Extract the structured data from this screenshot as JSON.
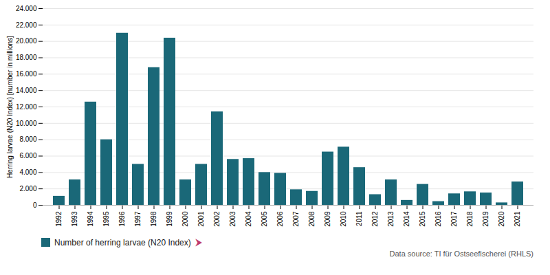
{
  "chart_data": {
    "type": "bar",
    "categories": [
      "1992",
      "1993",
      "1994",
      "1995",
      "1996",
      "1997",
      "1998",
      "1999",
      "2000",
      "2001",
      "2002",
      "2003",
      "2004",
      "2005",
      "2006",
      "2007",
      "2008",
      "2009",
      "2010",
      "2011",
      "2012",
      "2013",
      "2014",
      "2015",
      "2016",
      "2017",
      "2018",
      "2019",
      "2020",
      "2021"
    ],
    "series": [
      {
        "name": "Number of herring larvae (N20 Index)",
        "color": "#1a6878",
        "values": [
          1100,
          3100,
          12600,
          8000,
          21000,
          5000,
          16800,
          20400,
          3100,
          5000,
          11400,
          5600,
          5700,
          4000,
          3900,
          1900,
          1700,
          6500,
          7100,
          4600,
          1300,
          3100,
          600,
          2550,
          450,
          1400,
          1650,
          1500,
          300,
          2850
        ]
      }
    ],
    "ylabel": "Herring larvae (N20 Index) [number in millions]",
    "ylim": [
      0,
      24000
    ],
    "yticks": [
      0,
      {
        "value": 2000,
        "label": "2.000"
      },
      {
        "value": 4000,
        "label": "4.000"
      },
      {
        "value": 6000,
        "label": "6.000"
      },
      {
        "value": 8000,
        "label": "8.000"
      },
      {
        "value": 10000,
        "label": "10.000"
      },
      {
        "value": 12000,
        "label": "12.000"
      },
      {
        "value": 14000,
        "label": "14.000"
      },
      {
        "value": 16000,
        "label": "16.000"
      },
      {
        "value": 18000,
        "label": "18.000"
      },
      {
        "value": 20000,
        "label": "20.000"
      },
      {
        "value": 22000,
        "label": "22.000"
      },
      {
        "value": 24000,
        "label": "24.000"
      }
    ],
    "grid": true,
    "legend": "lower left",
    "annotations": [
      {
        "text": "⮞",
        "color": "#c0396b"
      },
      {
        "text": "Data source: TI für Ostseefischerei (RHLS)"
      }
    ]
  }
}
